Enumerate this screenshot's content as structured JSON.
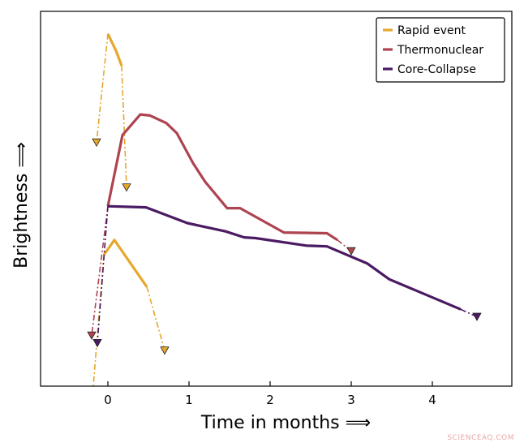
{
  "chart_data": {
    "type": "line",
    "xlabel": "Time in months ⟹",
    "ylabel": "Brightness ⟹",
    "xlim": [
      -0.83,
      4.98
    ],
    "ylim": [
      0,
      10
    ],
    "xticks": [
      0,
      1,
      2,
      3,
      4
    ],
    "yticks": [],
    "grid": false,
    "legend_placement": "top-right",
    "series": [
      {
        "name": "Rapid event",
        "color": "#e6a72c",
        "segments": [
          {
            "x": [
              0.0,
              0.1,
              0.17
            ],
            "y": [
              9.4,
              8.95,
              8.55
            ]
          },
          {
            "x": [
              -0.05,
              0.08,
              0.48
            ],
            "y": [
              3.5,
              3.9,
              2.65
            ]
          }
        ],
        "dashed": [
          {
            "x": [
              0.0,
              -0.14
            ],
            "y": [
              9.4,
              6.5
            ]
          },
          {
            "x": [
              0.17,
              0.23
            ],
            "y": [
              8.55,
              5.3
            ]
          },
          {
            "x": [
              0.48,
              0.7
            ],
            "y": [
              2.65,
              0.95
            ]
          },
          {
            "x": [
              -0.05,
              -0.18
            ],
            "y": [
              3.5,
              0.0
            ]
          }
        ],
        "upper_limits": [
          {
            "x": -0.14,
            "y": 6.5
          },
          {
            "x": 0.23,
            "y": 5.3
          },
          {
            "x": 0.7,
            "y": 0.95
          }
        ]
      },
      {
        "name": "Thermonuclear",
        "color": "#ad4450",
        "segments": [
          {
            "x": [
              0.0,
              0.18,
              0.4,
              0.52,
              0.72,
              0.85,
              1.05,
              1.2,
              1.47,
              1.63,
              2.17,
              2.7,
              2.83
            ],
            "y": [
              4.8,
              6.7,
              7.25,
              7.22,
              7.02,
              6.75,
              5.95,
              5.45,
              4.75,
              4.75,
              4.1,
              4.08,
              3.9
            ]
          }
        ],
        "dashed": [
          {
            "x": [
              0.0,
              -0.2
            ],
            "y": [
              4.8,
              1.35
            ]
          },
          {
            "x": [
              2.83,
              3.0
            ],
            "y": [
              3.9,
              3.6
            ]
          }
        ],
        "upper_limits": [
          {
            "x": -0.2,
            "y": 1.35
          },
          {
            "x": 3.0,
            "y": 3.6
          }
        ]
      },
      {
        "name": "Core-Collapse",
        "color": "#4a1a62",
        "segments": [
          {
            "x": [
              0.0,
              0.47,
              0.98,
              1.45,
              1.68,
              1.82,
              2.45,
              2.7,
              3.2,
              3.47,
              4.35
            ],
            "y": [
              4.8,
              4.77,
              4.35,
              4.13,
              3.97,
              3.95,
              3.75,
              3.73,
              3.27,
              2.85,
              2.05
            ]
          }
        ],
        "dashed": [
          {
            "x": [
              0.0,
              -0.13
            ],
            "y": [
              4.8,
              1.15
            ]
          },
          {
            "x": [
              4.35,
              4.55
            ],
            "y": [
              2.05,
              1.85
            ]
          }
        ],
        "upper_limits": [
          {
            "x": -0.13,
            "y": 1.15
          },
          {
            "x": 4.55,
            "y": 1.85
          }
        ]
      }
    ]
  },
  "watermark": "SCIENCEAQ.COM"
}
